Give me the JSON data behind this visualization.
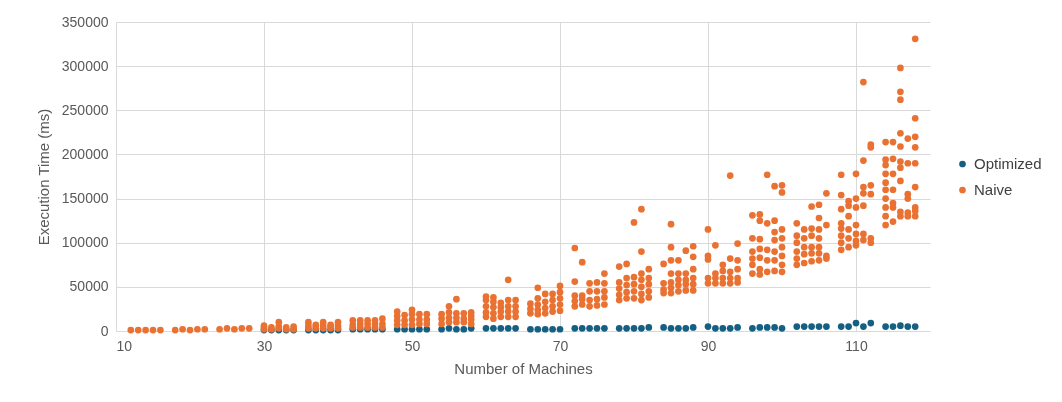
{
  "chart_data": {
    "type": "scatter",
    "xlabel": "Number of Machines",
    "ylabel": "Execution Time (ms)",
    "xlim": [
      10,
      120
    ],
    "xticks": [
      10,
      30,
      50,
      70,
      90,
      110
    ],
    "ylim": [
      0,
      350000
    ],
    "yticks": [
      0,
      50000,
      100000,
      150000,
      200000,
      250000,
      300000,
      350000
    ],
    "grid": true,
    "legend": "right",
    "marker": "circle",
    "series": [
      {
        "name": "Optimized",
        "color": "#156082",
        "x": [
          30,
          31,
          32,
          33,
          34,
          36,
          37,
          38,
          39,
          40,
          42,
          43,
          44,
          45,
          46,
          48,
          49,
          50,
          51,
          52,
          54,
          55,
          56,
          57,
          58,
          60,
          61,
          62,
          63,
          64,
          66,
          67,
          68,
          69,
          70,
          72,
          73,
          74,
          75,
          76,
          78,
          79,
          80,
          81,
          82,
          84,
          85,
          86,
          87,
          88,
          90,
          91,
          92,
          93,
          94,
          96,
          97,
          98,
          99,
          100,
          102,
          103,
          104,
          105,
          106,
          108,
          109,
          110,
          111,
          112,
          114,
          115,
          116,
          117,
          118
        ],
        "values": [
          1000,
          1000,
          1000,
          1000,
          1000,
          1000,
          1000,
          1000,
          1000,
          1000,
          2000,
          2000,
          2000,
          2000,
          2000,
          2000,
          2000,
          2000,
          2000,
          2000,
          2000,
          3000,
          2000,
          2000,
          3000,
          3000,
          3000,
          3000,
          3000,
          3000,
          2000,
          2000,
          2000,
          2000,
          2000,
          3000,
          3000,
          3000,
          3000,
          3000,
          3000,
          3000,
          3000,
          3000,
          4000,
          4000,
          3000,
          3000,
          3000,
          4000,
          5000,
          3000,
          3000,
          3000,
          4000,
          3000,
          4000,
          4000,
          4000,
          3000,
          5000,
          5000,
          5000,
          5000,
          5000,
          5000,
          5000,
          9000,
          5000,
          9000,
          5000,
          5000,
          6000,
          5000,
          5000
        ]
      },
      {
        "name": "Naive",
        "color": "#e97132",
        "x": [
          12,
          13,
          14,
          15,
          16,
          18,
          19,
          20,
          21,
          22,
          24,
          25,
          26,
          27,
          28,
          30,
          30,
          30,
          31,
          31,
          32,
          32,
          32,
          33,
          33,
          34,
          34,
          36,
          36,
          36,
          37,
          37,
          37,
          38,
          38,
          38,
          39,
          39,
          39,
          40,
          40,
          40,
          42,
          42,
          42,
          43,
          43,
          43,
          44,
          44,
          44,
          45,
          45,
          45,
          46,
          46,
          46,
          48,
          48,
          48,
          48,
          49,
          49,
          49,
          50,
          50,
          50,
          50,
          51,
          51,
          51,
          52,
          52,
          52,
          54,
          54,
          54,
          55,
          55,
          55,
          55,
          56,
          56,
          56,
          56,
          57,
          57,
          57,
          58,
          58,
          58,
          58,
          60,
          60,
          60,
          60,
          60,
          61,
          61,
          61,
          61,
          61,
          62,
          62,
          62,
          62,
          63,
          63,
          63,
          63,
          63,
          64,
          64,
          64,
          64,
          66,
          66,
          66,
          67,
          67,
          67,
          67,
          67,
          68,
          68,
          68,
          68,
          69,
          69,
          69,
          69,
          70,
          70,
          70,
          70,
          70,
          72,
          72,
          72,
          72,
          72,
          73,
          73,
          73,
          73,
          74,
          74,
          74,
          74,
          75,
          75,
          75,
          75,
          76,
          76,
          76,
          76,
          76,
          78,
          78,
          78,
          78,
          78,
          79,
          79,
          79,
          79,
          79,
          80,
          80,
          80,
          80,
          80,
          81,
          81,
          81,
          81,
          81,
          81,
          81,
          82,
          82,
          82,
          82,
          82,
          84,
          84,
          84,
          84,
          85,
          85,
          85,
          85,
          85,
          85,
          85,
          86,
          86,
          86,
          86,
          86,
          87,
          87,
          87,
          87,
          87,
          88,
          88,
          88,
          88,
          88,
          88,
          90,
          90,
          90,
          90,
          90,
          91,
          91,
          91,
          91,
          92,
          92,
          92,
          92,
          93,
          93,
          93,
          93,
          93,
          94,
          94,
          94,
          94,
          94,
          96,
          96,
          96,
          96,
          96,
          96,
          97,
          97,
          97,
          97,
          97,
          97,
          97,
          98,
          98,
          98,
          98,
          98,
          99,
          99,
          99,
          99,
          99,
          99,
          99,
          100,
          100,
          100,
          100,
          100,
          100,
          100,
          100,
          102,
          102,
          102,
          102,
          102,
          102,
          103,
          103,
          103,
          103,
          103,
          104,
          104,
          104,
          104,
          104,
          104,
          105,
          105,
          105,
          105,
          105,
          105,
          105,
          106,
          106,
          106,
          106,
          108,
          108,
          108,
          108,
          108,
          108,
          108,
          108,
          109,
          109,
          109,
          109,
          109,
          109,
          110,
          110,
          110,
          110,
          110,
          110,
          110,
          111,
          111,
          111,
          111,
          111,
          111,
          111,
          112,
          112,
          112,
          112,
          112,
          112,
          114,
          114,
          114,
          114,
          114,
          114,
          114,
          114,
          114,
          114,
          115,
          115,
          115,
          115,
          115,
          115,
          115,
          116,
          116,
          116,
          116,
          116,
          116,
          116,
          116,
          116,
          116,
          117,
          117,
          117,
          117,
          117,
          117,
          118,
          118,
          118,
          118,
          118,
          118,
          118,
          118,
          118
        ],
        "values": [
          1000,
          1000,
          1000,
          1000,
          1000,
          1000,
          2000,
          1000,
          2000,
          2000,
          2000,
          3000,
          2000,
          3000,
          3000,
          2000,
          4000,
          6000,
          2000,
          4000,
          3000,
          5000,
          10000,
          2000,
          4000,
          2000,
          5000,
          3000,
          6000,
          10000,
          3000,
          5000,
          7000,
          3000,
          6000,
          10000,
          3000,
          5000,
          7000,
          3000,
          6000,
          10000,
          4000,
          7000,
          12000,
          4000,
          8000,
          12000,
          4000,
          8000,
          12000,
          4000,
          8000,
          12000,
          4000,
          8000,
          14000,
          7000,
          12000,
          17000,
          22000,
          7000,
          12000,
          18000,
          7000,
          13000,
          19000,
          24000,
          8000,
          13000,
          19000,
          8000,
          13000,
          19000,
          8000,
          14000,
          19000,
          10000,
          15000,
          21000,
          28000,
          10000,
          15000,
          20000,
          36000,
          10000,
          14000,
          20000,
          8000,
          13000,
          17000,
          21000,
          16000,
          21000,
          28000,
          35000,
          39000,
          14000,
          20000,
          27000,
          33000,
          38000,
          16000,
          22000,
          27000,
          32000,
          16000,
          22000,
          28000,
          35000,
          58000,
          16000,
          22000,
          28000,
          35000,
          20000,
          25000,
          31000,
          19000,
          24000,
          30000,
          37000,
          49000,
          20000,
          26000,
          33000,
          42000,
          22000,
          28000,
          35000,
          42000,
          23000,
          30000,
          37000,
          44000,
          51000,
          28000,
          34000,
          40000,
          56000,
          94000,
          30000,
          36000,
          40000,
          78000,
          28000,
          35000,
          45000,
          54000,
          29000,
          36000,
          45000,
          55000,
          30000,
          38000,
          45000,
          54000,
          65000,
          35000,
          41000,
          48000,
          55000,
          73000,
          37000,
          44000,
          52000,
          60000,
          76000,
          37000,
          45000,
          53000,
          61000,
          123000,
          35000,
          42000,
          50000,
          58000,
          65000,
          90000,
          138000,
          38000,
          45000,
          53000,
          60000,
          70000,
          43000,
          47000,
          54000,
          76000,
          43000,
          49000,
          55000,
          65000,
          80000,
          95000,
          121000,
          45000,
          52000,
          58000,
          65000,
          80000,
          46000,
          53000,
          58000,
          65000,
          91000,
          46000,
          53000,
          60000,
          70000,
          84000,
          96000,
          54000,
          60000,
          81000,
          85000,
          115000,
          54000,
          60000,
          65000,
          97000,
          54000,
          60000,
          68000,
          75000,
          54000,
          60000,
          67000,
          82000,
          176000,
          55000,
          60000,
          70000,
          80000,
          99000,
          65000,
          75000,
          82000,
          90000,
          105000,
          131000,
          64000,
          70000,
          83000,
          93000,
          104000,
          125000,
          132000,
          67000,
          80000,
          92000,
          122000,
          177000,
          68000,
          80000,
          90000,
          103000,
          112000,
          125000,
          164000,
          67000,
          75000,
          85000,
          95000,
          105000,
          115000,
          157000,
          165000,
          75000,
          82000,
          90000,
          100000,
          108000,
          122000,
          77000,
          87000,
          95000,
          105000,
          115000,
          79000,
          88000,
          95000,
          108000,
          116000,
          141000,
          80000,
          88000,
          95000,
          105000,
          115000,
          128000,
          143000,
          82000,
          85000,
          120000,
          156000,
          92000,
          100000,
          108000,
          116000,
          122000,
          138000,
          154000,
          177000,
          95000,
          105000,
          115000,
          130000,
          142000,
          147000,
          97000,
          102000,
          110000,
          120000,
          140000,
          150000,
          178000,
          103000,
          110000,
          142000,
          156000,
          163000,
          193000,
          282000,
          100000,
          105000,
          155000,
          165000,
          208000,
          211000,
          120000,
          130000,
          140000,
          150000,
          160000,
          168000,
          178000,
          188000,
          194000,
          214000,
          124000,
          140000,
          145000,
          160000,
          178000,
          195000,
          214000,
          130000,
          135000,
          170000,
          185000,
          192000,
          209000,
          224000,
          262000,
          271000,
          298000,
          130000,
          134000,
          150000,
          155000,
          190000,
          218000,
          130000,
          136000,
          140000,
          163000,
          190000,
          208000,
          220000,
          241000,
          331000
        ]
      }
    ]
  }
}
